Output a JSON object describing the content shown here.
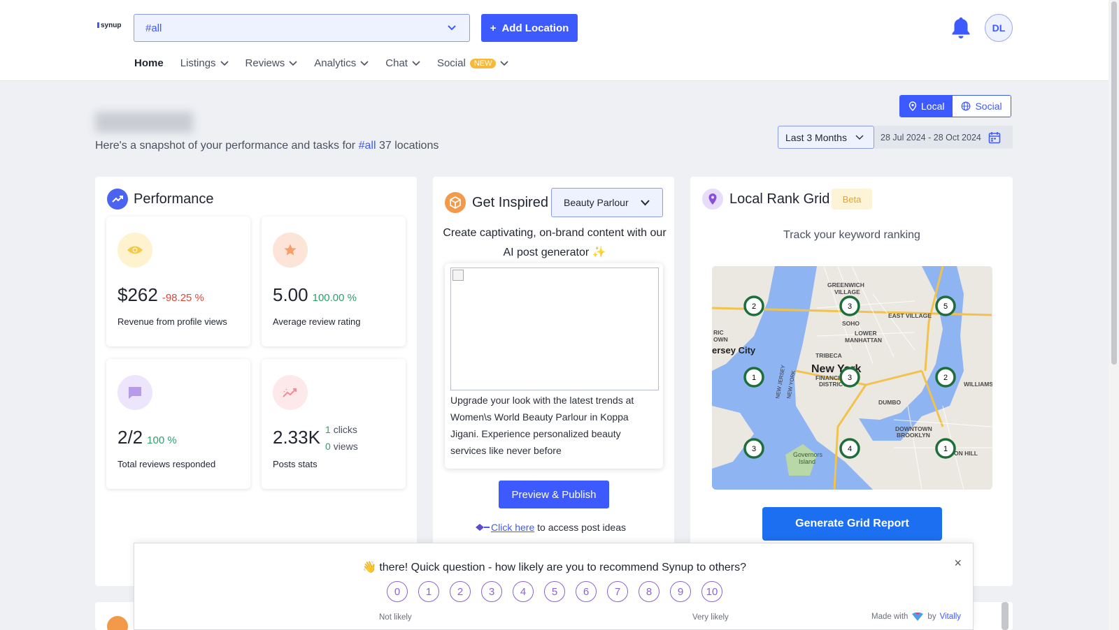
{
  "header": {
    "logo": "synup",
    "location_select": "#all",
    "add_location": "Add Location",
    "avatar": "DL",
    "nav": [
      {
        "label": "Home",
        "active": true
      },
      {
        "label": "Listings"
      },
      {
        "label": "Reviews"
      },
      {
        "label": "Analytics"
      },
      {
        "label": "Chat"
      },
      {
        "label": "Social",
        "badge": "NEW"
      }
    ]
  },
  "greeting": {
    "snapshot_prefix": "Here's a snapshot of your performance and tasks for",
    "tag": "#all",
    "snapshot_suffix": "37 locations"
  },
  "view_toggle": {
    "local": "Local",
    "social": "Social",
    "selected": "Local"
  },
  "date_filter": {
    "period": "Last 3 Months",
    "range": "28 Jul 2024 - 28 Oct 2024"
  },
  "performance": {
    "title": "Performance",
    "stats": [
      {
        "value": "$262",
        "change": "-98.25 %",
        "label": "Revenue from profile views",
        "icon": "eye-icon"
      },
      {
        "value": "5.00",
        "change": "100.00 %",
        "label": "Average review rating",
        "icon": "star-icon"
      },
      {
        "value": "2/2",
        "change": "100 %",
        "label": "Total reviews responded",
        "icon": "chat-icon"
      },
      {
        "value": "2.33K",
        "clicks_value": "1",
        "clicks_label": "clicks",
        "views_value": "0",
        "views_label": "views",
        "label": "Posts stats",
        "icon": "trend-icon"
      }
    ]
  },
  "inspired": {
    "title": "Get Inspired",
    "category": "Beauty Parlour",
    "subtitle": "Create captivating, on-brand content with our AI post generator ✨",
    "post_text": "Upgrade your look with the latest trends at Women\\s World Beauty Parlour in Koppa Jigani. Experience personalized beauty services like never before",
    "preview_button": "Preview & Publish",
    "click_here": "Click here",
    "click_suffix": "to access post ideas"
  },
  "rank_grid": {
    "title": "Local Rank Grid",
    "badge": "Beta",
    "subtitle": "Track your keyword ranking",
    "map_labels": [
      "GREENWICH VILLAGE",
      "SOHO",
      "EAST VILLAGE",
      "LOWER MANHATTAN",
      "ersey City",
      "TRIBECA",
      "New York",
      "FINANCIAL DISTRICT",
      "DUMBO",
      "WILLIAMSBURG",
      "DOWNTOWN BROOKLYN",
      "Governors Island",
      "CLINTON HILL",
      "NEW JERSEY",
      "NEW YORK",
      "RIC OWN"
    ],
    "pins": [
      "2",
      "3",
      "5",
      "1",
      "3",
      "2",
      "3",
      "4",
      "1"
    ],
    "button": "Generate Grid Report"
  },
  "survey": {
    "question": "👋 there! Quick question - how likely are you to recommend Synup to others?",
    "scale": [
      "0",
      "1",
      "2",
      "3",
      "4",
      "5",
      "6",
      "7",
      "8",
      "9",
      "10"
    ],
    "low_label": "Not likely",
    "high_label": "Very likely",
    "made_with": "Made with",
    "by": "by",
    "brand": "Vitally",
    "close": "×"
  }
}
